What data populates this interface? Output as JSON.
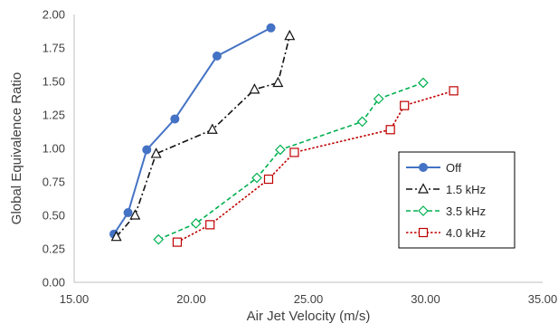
{
  "chart_data": {
    "type": "scatter",
    "title": "",
    "xlabel": "Air Jet Velocity (m/s)",
    "ylabel": "Global Equivalence Ratio",
    "xlim": [
      15.0,
      35.0
    ],
    "ylim": [
      0.0,
      2.0
    ],
    "x_ticks": [
      "15.00",
      "20.00",
      "25.00",
      "30.00",
      "35.00"
    ],
    "y_ticks": [
      "0.00",
      "0.25",
      "0.50",
      "0.75",
      "1.00",
      "1.25",
      "1.50",
      "1.75",
      "2.00"
    ],
    "grid": false,
    "legend_position": "right",
    "series": [
      {
        "name": "Off",
        "color": "#4472c4",
        "line": "solid",
        "marker": "circle",
        "points": [
          [
            16.7,
            0.36
          ],
          [
            17.3,
            0.52
          ],
          [
            18.1,
            0.99
          ],
          [
            19.3,
            1.22
          ],
          [
            21.1,
            1.69
          ],
          [
            23.4,
            1.9
          ]
        ]
      },
      {
        "name": "1.5 kHz",
        "color": "#111111",
        "line": "dashdot",
        "marker": "triangle",
        "points": [
          [
            16.8,
            0.34
          ],
          [
            17.6,
            0.5
          ],
          [
            18.5,
            0.96
          ],
          [
            20.9,
            1.14
          ],
          [
            22.7,
            1.44
          ],
          [
            23.7,
            1.49
          ],
          [
            24.2,
            1.84
          ]
        ]
      },
      {
        "name": "3.5 kHz",
        "color": "#00b050",
        "line": "dashed",
        "marker": "diamond",
        "points": [
          [
            18.6,
            0.32
          ],
          [
            20.2,
            0.44
          ],
          [
            22.8,
            0.78
          ],
          [
            23.8,
            0.99
          ],
          [
            27.3,
            1.2
          ],
          [
            28.0,
            1.37
          ],
          [
            29.9,
            1.49
          ]
        ]
      },
      {
        "name": "4.0 kHz",
        "color": "#c00000",
        "line": "dotted",
        "marker": "square",
        "points": [
          [
            19.4,
            0.3
          ],
          [
            20.8,
            0.43
          ],
          [
            23.3,
            0.77
          ],
          [
            24.4,
            0.97
          ],
          [
            28.5,
            1.14
          ],
          [
            29.1,
            1.32
          ],
          [
            31.2,
            1.43
          ]
        ]
      }
    ]
  }
}
